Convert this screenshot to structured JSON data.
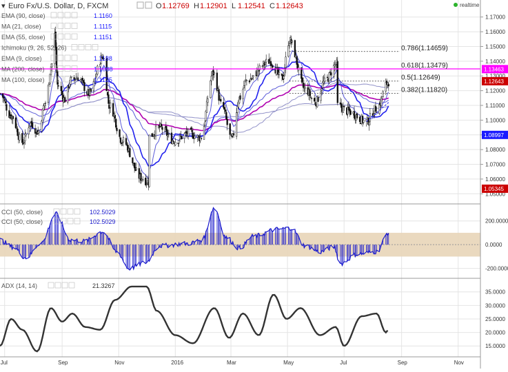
{
  "header": {
    "symbol": "Euro Fx/U.S. Dollar, D, FXCM",
    "ohlc": [
      {
        "k": "O",
        "v": "1.12769"
      },
      {
        "k": "H",
        "v": "1.12901"
      },
      {
        "k": "L",
        "v": "1.12541"
      },
      {
        "k": "C",
        "v": "1.12643"
      }
    ],
    "realtime": "realtime"
  },
  "indicators": [
    {
      "label": "EMA (90, close)",
      "value": "1.1160",
      "color": "#1a1aff"
    },
    {
      "label": "MA (21, close)",
      "value": "1.1115",
      "color": "#1a1aff"
    },
    {
      "label": "EMA (55, close)",
      "value": "1.1151",
      "color": "#1a1aff"
    },
    {
      "label": "Ichimoku (9, 26, 52, 26)",
      "value": "",
      "color": "#1a1aff"
    },
    {
      "label": "EMA (9, close)",
      "value": "1.1188",
      "color": "#1a1aff"
    },
    {
      "label": "MA (200, close)",
      "value": "1.1088",
      "color": "#1a1aff"
    },
    {
      "label": "MA (100, close)",
      "value": "1.1125",
      "color": "#1a1aff"
    }
  ],
  "cci_legend": [
    {
      "label": "CCI (50, close)",
      "value": "102.5029"
    },
    {
      "label": "CCI (50, close)",
      "value": "102.5029"
    }
  ],
  "adx_legend": {
    "label": "ADX (14, 14)",
    "value": "21.3267"
  },
  "colors": {
    "candle": "#111111",
    "ema_fast": "#2222ee",
    "ema_slow": "#5a5ad8",
    "ma_long": "#9090c8",
    "magenta_ma": "#b000b0",
    "fib_line": "#ff00ff",
    "cci": "#1a1acc",
    "cci_band": "#e8d5b8",
    "adx": "#333333",
    "grid": "#e4e4e4"
  },
  "chart_data": [
    {
      "type": "candlestick",
      "price_axis": {
        "ticks": [
          "1.17000",
          "1.16000",
          "1.15000",
          "1.14000",
          "1.13000",
          "1.12000",
          "1.11000",
          "1.10000",
          "1.09000",
          "1.08000",
          "1.07000",
          "1.06000",
          "1.05000"
        ],
        "ylim": [
          1.045,
          1.175
        ]
      },
      "x_axis": {
        "ticks": [
          "Jul",
          "Sep",
          "Nov",
          "2016",
          "Mar",
          "May",
          "Jul",
          "Sep",
          "Nov"
        ],
        "tick_dates": [
          "2015-07-01",
          "2015-09-01",
          "2015-11-01",
          "2016-01-01",
          "2016-03-01",
          "2016-05-01",
          "2016-07-01",
          "2016-09-01",
          "2016-11-01"
        ],
        "xlim": [
          "2015-06-26",
          "2016-11-25"
        ]
      },
      "close_anchors": [
        [
          "2015-06-26",
          1.118
        ],
        [
          "2015-07-08",
          1.103
        ],
        [
          "2015-07-20",
          1.085
        ],
        [
          "2015-07-29",
          1.098
        ],
        [
          "2015-08-06",
          1.092
        ],
        [
          "2015-08-14",
          1.112
        ],
        [
          "2015-08-21",
          1.138
        ],
        [
          "2015-08-24",
          1.158
        ],
        [
          "2015-08-27",
          1.124
        ],
        [
          "2015-09-04",
          1.114
        ],
        [
          "2015-09-10",
          1.127
        ],
        [
          "2015-09-18",
          1.129
        ],
        [
          "2015-09-30",
          1.118
        ],
        [
          "2015-10-15",
          1.143
        ],
        [
          "2015-10-22",
          1.11
        ],
        [
          "2015-11-05",
          1.086
        ],
        [
          "2015-11-25",
          1.061
        ],
        [
          "2015-12-03",
          1.058
        ],
        [
          "2015-12-04",
          1.089
        ],
        [
          "2015-12-15",
          1.095
        ],
        [
          "2015-12-31",
          1.086
        ],
        [
          "2016-01-15",
          1.091
        ],
        [
          "2016-01-28",
          1.088
        ],
        [
          "2016-02-11",
          1.132
        ],
        [
          "2016-02-20",
          1.11
        ],
        [
          "2016-03-02",
          1.087
        ],
        [
          "2016-03-10",
          1.115
        ],
        [
          "2016-03-18",
          1.127
        ],
        [
          "2016-04-12",
          1.14
        ],
        [
          "2016-04-25",
          1.128
        ],
        [
          "2016-05-03",
          1.154
        ],
        [
          "2016-05-20",
          1.121
        ],
        [
          "2016-05-31",
          1.112
        ],
        [
          "2016-06-10",
          1.126
        ],
        [
          "2016-06-23",
          1.138
        ],
        [
          "2016-06-24",
          1.11
        ],
        [
          "2016-07-05",
          1.106
        ],
        [
          "2016-07-25",
          1.099
        ],
        [
          "2016-08-05",
          1.108
        ],
        [
          "2016-08-18",
          1.126
        ]
      ],
      "levels": [
        {
          "label": "0.786(1.14659)",
          "value": 1.14659
        },
        {
          "label": "0.618(1.13479)",
          "value": 1.13479
        },
        {
          "label": "0.5(1.12649)",
          "value": 1.12649
        },
        {
          "label": "0.382(1.11820)",
          "value": 1.1182
        }
      ],
      "price_badges": [
        {
          "text": "1.13463",
          "value": 1.13463,
          "color": "#ff00ff"
        },
        {
          "text": "1.12643",
          "value": 1.12643,
          "color": "#cc0000"
        },
        {
          "text": "1.08997",
          "value": 1.08997,
          "color": "#1a1aff"
        },
        {
          "text": "1.05345",
          "value": 1.05345,
          "color": "#cc0000"
        }
      ]
    },
    {
      "type": "area",
      "title": "CCI",
      "ticks": [
        "200.0000",
        "0.0000",
        "-200.0000"
      ],
      "ylim": [
        -260,
        320
      ],
      "band": [
        -100,
        100
      ],
      "anchors": [
        [
          "2015-06-26",
          40
        ],
        [
          "2015-07-10",
          -20
        ],
        [
          "2015-07-24",
          -110
        ],
        [
          "2015-08-10",
          20
        ],
        [
          "2015-08-25",
          260
        ],
        [
          "2015-09-10",
          40
        ],
        [
          "2015-09-25",
          30
        ],
        [
          "2015-10-15",
          110
        ],
        [
          "2015-10-30",
          -60
        ],
        [
          "2015-11-12",
          -200
        ],
        [
          "2015-11-30",
          -150
        ],
        [
          "2015-12-15",
          -10
        ],
        [
          "2016-01-15",
          10
        ],
        [
          "2016-01-30",
          40
        ],
        [
          "2016-02-12",
          310
        ],
        [
          "2016-02-25",
          60
        ],
        [
          "2016-03-10",
          -30
        ],
        [
          "2016-03-25",
          70
        ],
        [
          "2016-04-20",
          130
        ],
        [
          "2016-05-05",
          140
        ],
        [
          "2016-05-20",
          -10
        ],
        [
          "2016-06-05",
          -60
        ],
        [
          "2016-06-20",
          -20
        ],
        [
          "2016-06-27",
          -160
        ],
        [
          "2016-07-15",
          -80
        ],
        [
          "2016-08-05",
          -60
        ],
        [
          "2016-08-18",
          102
        ]
      ]
    },
    {
      "type": "line",
      "title": "ADX",
      "ticks": [
        "35.0000",
        "30.0000",
        "25.0000",
        "20.0000",
        "15.0000"
      ],
      "ylim": [
        12,
        39
      ],
      "anchors": [
        [
          "2015-06-26",
          15
        ],
        [
          "2015-07-08",
          25
        ],
        [
          "2015-07-20",
          21
        ],
        [
          "2015-08-05",
          13
        ],
        [
          "2015-08-20",
          29
        ],
        [
          "2015-09-01",
          24
        ],
        [
          "2015-09-12",
          27
        ],
        [
          "2015-09-26",
          22
        ],
        [
          "2015-10-12",
          21
        ],
        [
          "2015-10-28",
          32
        ],
        [
          "2015-11-15",
          37
        ],
        [
          "2015-12-01",
          37
        ],
        [
          "2015-12-12",
          28
        ],
        [
          "2016-01-01",
          19
        ],
        [
          "2016-01-20",
          16
        ],
        [
          "2016-02-12",
          29
        ],
        [
          "2016-02-28",
          18
        ],
        [
          "2016-03-14",
          27
        ],
        [
          "2016-03-31",
          19
        ],
        [
          "2016-04-16",
          34
        ],
        [
          "2016-04-30",
          25
        ],
        [
          "2016-05-15",
          29
        ],
        [
          "2016-06-05",
          19
        ],
        [
          "2016-06-22",
          22
        ],
        [
          "2016-07-01",
          15
        ],
        [
          "2016-07-20",
          26
        ],
        [
          "2016-08-05",
          27
        ],
        [
          "2016-08-15",
          20
        ],
        [
          "2016-08-18",
          21
        ]
      ]
    }
  ]
}
